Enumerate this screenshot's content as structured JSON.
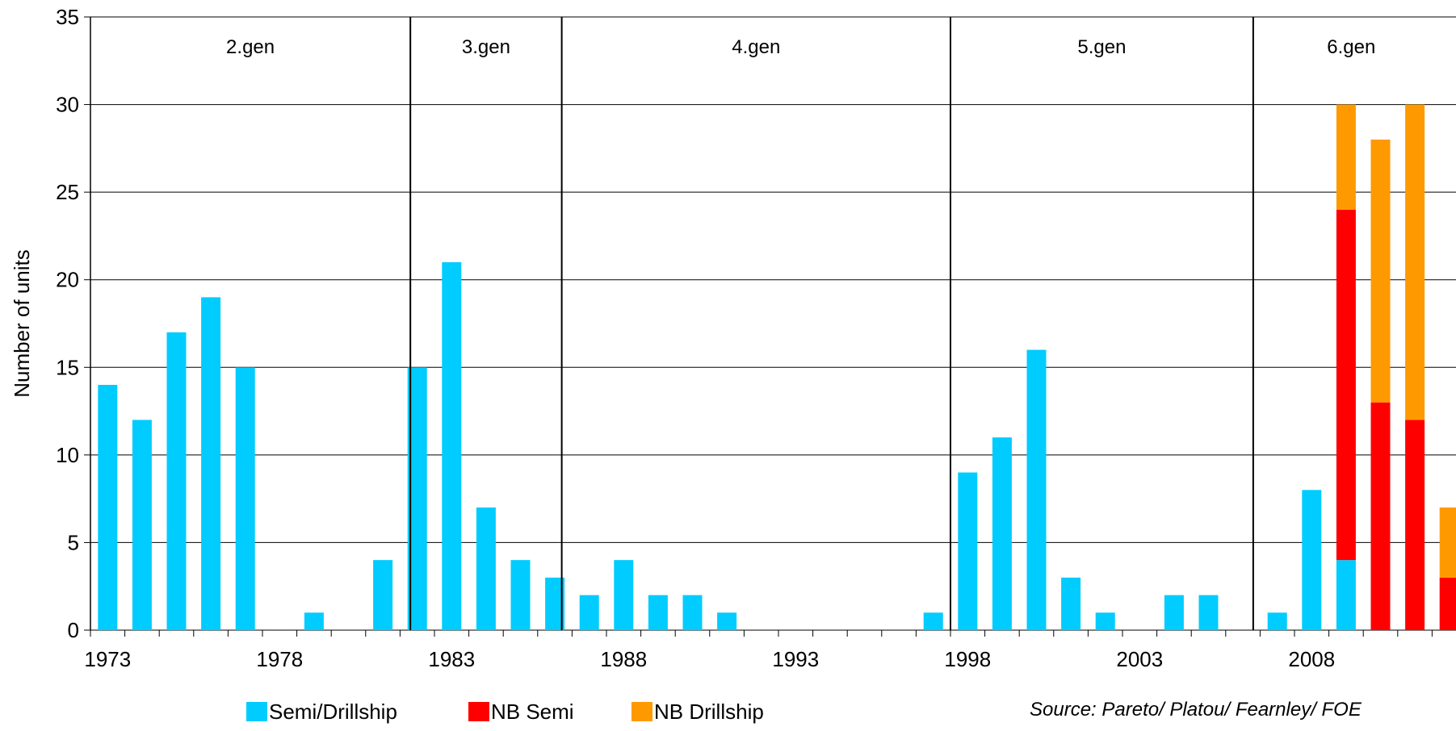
{
  "chart_data": {
    "type": "bar",
    "stacked": true,
    "title": "",
    "xlabel": "",
    "ylabel": "Number of units",
    "ylim": [
      0,
      35
    ],
    "yticks": [
      0,
      5,
      10,
      15,
      20,
      25,
      30,
      35
    ],
    "xlim": [
      1972.5,
      2012
    ],
    "xtick_labels": [
      1973,
      1978,
      1983,
      1988,
      1993,
      1998,
      2003,
      2008
    ],
    "grid": "horizontal",
    "legend_position": "bottom",
    "series": [
      {
        "name": "Semi/Drillship",
        "color": "#00CCFF",
        "points": [
          {
            "year": 1973,
            "value": 14
          },
          {
            "year": 1974,
            "value": 12
          },
          {
            "year": 1975,
            "value": 17
          },
          {
            "year": 1976,
            "value": 19
          },
          {
            "year": 1977,
            "value": 15
          },
          {
            "year": 1979,
            "value": 1
          },
          {
            "year": 1981,
            "value": 4
          },
          {
            "year": 1982,
            "value": 15
          },
          {
            "year": 1983,
            "value": 21
          },
          {
            "year": 1984,
            "value": 7
          },
          {
            "year": 1985,
            "value": 4
          },
          {
            "year": 1986,
            "value": 3
          },
          {
            "year": 1987,
            "value": 2
          },
          {
            "year": 1988,
            "value": 4
          },
          {
            "year": 1989,
            "value": 2
          },
          {
            "year": 1990,
            "value": 2
          },
          {
            "year": 1991,
            "value": 1
          },
          {
            "year": 1997,
            "value": 1
          },
          {
            "year": 1998,
            "value": 9
          },
          {
            "year": 1999,
            "value": 11
          },
          {
            "year": 2000,
            "value": 16
          },
          {
            "year": 2001,
            "value": 3
          },
          {
            "year": 2002,
            "value": 1
          },
          {
            "year": 2004,
            "value": 2
          },
          {
            "year": 2005,
            "value": 2
          },
          {
            "year": 2007,
            "value": 1
          },
          {
            "year": 2008,
            "value": 8
          },
          {
            "year": 2009,
            "value": 4
          }
        ]
      },
      {
        "name": "NB Semi",
        "color": "#FF0000",
        "points": [
          {
            "year": 2009,
            "value": 20
          },
          {
            "year": 2010,
            "value": 13
          },
          {
            "year": 2011,
            "value": 12
          },
          {
            "year": 2012,
            "value": 3
          }
        ]
      },
      {
        "name": "NB Drillship",
        "color": "#FF9900",
        "points": [
          {
            "year": 2009,
            "value": 6
          },
          {
            "year": 2010,
            "value": 15
          },
          {
            "year": 2011,
            "value": 18
          },
          {
            "year": 2012,
            "value": 4
          }
        ]
      }
    ],
    "generations": [
      {
        "label": "2.gen",
        "start": 1972.5,
        "end": 1981.8
      },
      {
        "label": "3.gen",
        "start": 1981.8,
        "end": 1986.2
      },
      {
        "label": "4.gen",
        "start": 1986.2,
        "end": 1997.5
      },
      {
        "label": "5.gen",
        "start": 1997.5,
        "end": 2006.3
      },
      {
        "label": "6.gen",
        "start": 2006.3,
        "end": 2012
      }
    ],
    "source": "Source: Pareto/ Platou/ Fearnley/ FOE"
  }
}
